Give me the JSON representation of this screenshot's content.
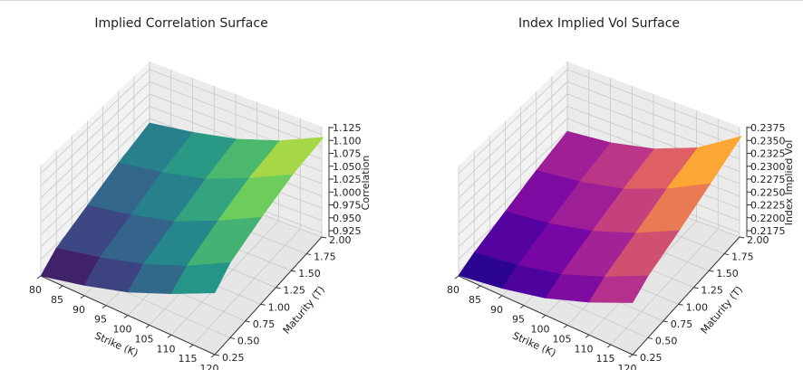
{
  "chart_data": [
    {
      "type": "surface3d",
      "title": "Implied Correlation Surface",
      "xlabel": "Strike (K)",
      "ylabel": "Maturity (T)",
      "zlabel": "Correlation",
      "colormap": "viridis",
      "colors": [
        "#440154",
        "#3b528b",
        "#21918c",
        "#5ec962",
        "#fde725"
      ],
      "x": [
        80,
        90,
        100,
        110,
        120
      ],
      "y": [
        0.25,
        0.5,
        1.0,
        1.5,
        2.0
      ],
      "xticks": [
        "80",
        "85",
        "90",
        "95",
        "100",
        "105",
        "110",
        "115",
        "120"
      ],
      "yticks": [
        "0.25",
        "0.50",
        "0.75",
        "1.00",
        "1.25",
        "1.50",
        "1.75",
        "2.00"
      ],
      "zticks": [
        "0.925",
        "0.950",
        "0.975",
        "1.000",
        "1.025",
        "1.050",
        "1.075",
        "1.100",
        "1.125"
      ],
      "zlim": [
        0.91,
        1.135
      ],
      "z": [
        [
          0.91,
          0.93,
          0.955,
          0.99,
          1.03
        ],
        [
          0.935,
          0.955,
          0.98,
          1.015,
          1.06
        ],
        [
          0.96,
          0.98,
          1.005,
          1.045,
          1.09
        ],
        [
          0.985,
          1.005,
          1.03,
          1.07,
          1.115
        ],
        [
          1.005,
          1.025,
          1.05,
          1.085,
          1.13
        ]
      ]
    },
    {
      "type": "surface3d",
      "title": "Index Implied Vol Surface",
      "xlabel": "Strike (K)",
      "ylabel": "Maturity (T)",
      "zlabel": "Index Implied Vol",
      "colormap": "plasma",
      "colors": [
        "#0d0887",
        "#6a00a8",
        "#b12a90",
        "#e16462",
        "#fca636",
        "#f0f921"
      ],
      "x": [
        80,
        90,
        100,
        110,
        120
      ],
      "y": [
        0.25,
        0.5,
        1.0,
        1.5,
        2.0
      ],
      "xticks": [
        "80",
        "85",
        "90",
        "95",
        "100",
        "105",
        "110",
        "115",
        "120"
      ],
      "yticks": [
        "0.25",
        "0.50",
        "0.75",
        "1.00",
        "1.25",
        "1.50",
        "1.75",
        "2.00"
      ],
      "zticks": [
        "0.2175",
        "0.2200",
        "0.2225",
        "0.2250",
        "0.2275",
        "0.2300",
        "0.2325",
        "0.2350",
        "0.2375"
      ],
      "zlim": [
        0.2162,
        0.2385
      ],
      "z": [
        [
          0.2163,
          0.2176,
          0.2195,
          0.2225,
          0.2262
        ],
        [
          0.2178,
          0.2192,
          0.2212,
          0.2245,
          0.2285
        ],
        [
          0.22,
          0.2215,
          0.2238,
          0.2272,
          0.2315
        ],
        [
          0.2222,
          0.2238,
          0.2262,
          0.23,
          0.2348
        ],
        [
          0.224,
          0.2256,
          0.2282,
          0.2322,
          0.2382
        ]
      ]
    }
  ]
}
